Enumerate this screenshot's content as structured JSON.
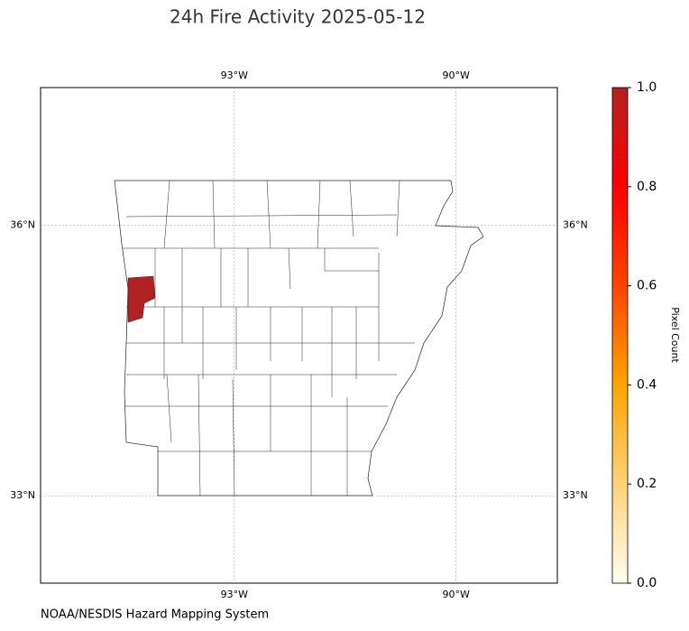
{
  "title": "24h Fire Activity 2025-05-12",
  "map": {
    "xlim": [
      -95.62,
      -88.63
    ],
    "ylim": [
      32.03,
      37.53
    ],
    "xticks": [
      {
        "value": -93,
        "label": "93°W"
      },
      {
        "value": -90,
        "label": "90°W"
      }
    ],
    "yticks": [
      {
        "value": 33,
        "label": "33°N"
      },
      {
        "value": 36,
        "label": "36°N"
      }
    ],
    "grid": true,
    "highlighted_values": [
      1
    ]
  },
  "colorbar": {
    "label": "Pixel Count",
    "lim": [
      0,
      1
    ],
    "ticks": [
      {
        "value": 0,
        "label": "0.0"
      },
      {
        "value": 0.2,
        "label": "0.2"
      },
      {
        "value": 0.4,
        "label": "0.4"
      },
      {
        "value": 0.6,
        "label": "0.6"
      },
      {
        "value": 0.8,
        "label": "0.8"
      },
      {
        "value": 1,
        "label": "1.0"
      }
    ],
    "colors": [
      "#fffff0",
      "#ffd27a",
      "#ffa500",
      "#ff4500",
      "#ff0000",
      "#b22222"
    ]
  },
  "source": "NOAA/NESDIS Hazard Mapping System"
}
